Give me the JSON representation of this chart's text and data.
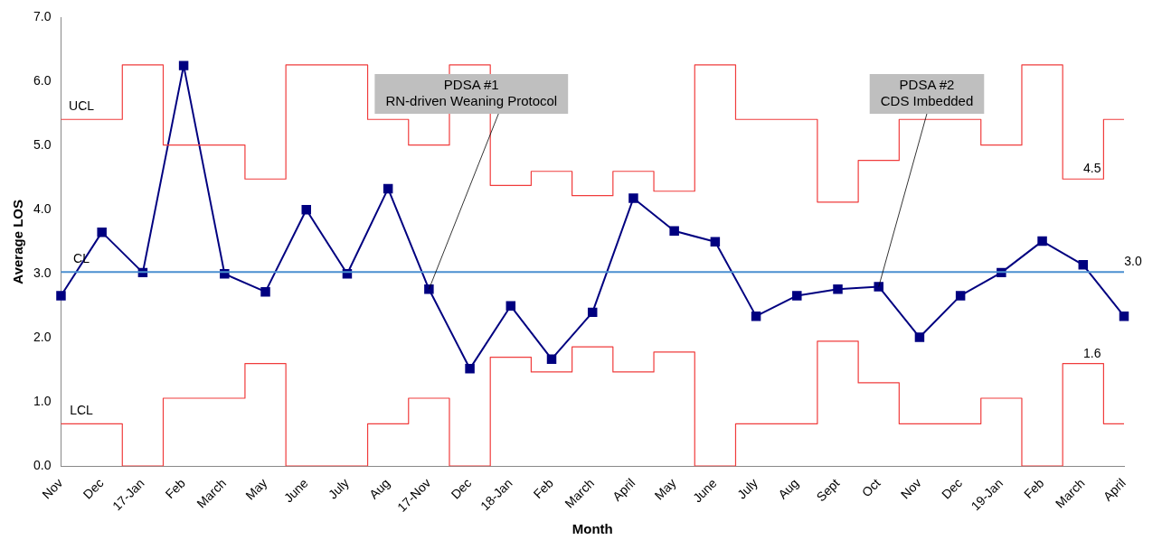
{
  "chart_data": {
    "type": "line",
    "xlabel": "Month",
    "ylabel": "Average LOS",
    "categories": [
      "Nov",
      "Dec",
      "17-Jan",
      "Feb",
      "March",
      "May",
      "June",
      "July",
      "Aug",
      "17-Nov",
      "Dec",
      "18-Jan",
      "Feb",
      "March",
      "April",
      "May",
      "June",
      "July",
      "Aug",
      "Sept",
      "Oct",
      "Nov",
      "Dec",
      "19-Jan",
      "Feb",
      "March",
      "April"
    ],
    "series": [
      {
        "name": "UCL",
        "type": "step",
        "color": "#f03c3c",
        "marker": "none",
        "values": [
          5.41,
          5.41,
          6.26,
          5.01,
          5.01,
          4.48,
          6.26,
          6.26,
          5.41,
          5.01,
          6.26,
          4.38,
          4.6,
          4.22,
          4.6,
          4.29,
          6.26,
          5.41,
          5.41,
          4.12,
          4.77,
          5.41,
          5.41,
          5.01,
          6.26,
          4.48,
          5.41
        ],
        "value_labels": [
          null,
          null,
          null,
          null,
          null,
          null,
          null,
          null,
          null,
          null,
          null,
          null,
          null,
          null,
          null,
          null,
          null,
          null,
          null,
          null,
          null,
          null,
          null,
          null,
          null,
          "4.5",
          null
        ]
      },
      {
        "name": "LCL",
        "type": "step",
        "color": "#f03c3c",
        "marker": "none",
        "values": [
          0.66,
          0.66,
          0,
          1.06,
          1.06,
          1.6,
          0,
          0,
          0.66,
          1.06,
          0,
          1.7,
          1.47,
          1.86,
          1.47,
          1.78,
          0,
          0.66,
          0.66,
          1.95,
          1.3,
          0.66,
          0.66,
          1.06,
          0,
          1.6,
          0.66
        ],
        "value_labels": [
          null,
          null,
          null,
          null,
          null,
          null,
          null,
          null,
          null,
          null,
          null,
          null,
          null,
          null,
          null,
          null,
          null,
          null,
          null,
          null,
          null,
          null,
          null,
          null,
          null,
          "1.6",
          null
        ]
      },
      {
        "name": "CL",
        "type": "line",
        "color": "#4a8fd0",
        "marker": "none",
        "values": [
          3.03,
          3.03,
          3.03,
          3.03,
          3.03,
          3.03,
          3.03,
          3.03,
          3.03,
          3.03,
          3.03,
          3.03,
          3.03,
          3.03,
          3.03,
          3.03,
          3.03,
          3.03,
          3.03,
          3.03,
          3.03,
          3.03,
          3.03,
          3.03,
          3.03,
          3.03,
          3.03
        ],
        "value_labels": [
          null,
          null,
          null,
          null,
          null,
          null,
          null,
          null,
          null,
          null,
          null,
          null,
          null,
          null,
          null,
          null,
          null,
          null,
          null,
          null,
          null,
          null,
          null,
          null,
          null,
          null,
          "3.0"
        ]
      },
      {
        "type": "line",
        "color": "#000080",
        "marker": "square",
        "values": [
          2.66,
          3.65,
          3.02,
          6.25,
          3.0,
          2.72,
          4.0,
          3.0,
          4.33,
          2.76,
          1.52,
          2.5,
          1.67,
          2.4,
          4.18,
          3.67,
          3.5,
          2.34,
          2.66,
          2.76,
          2.8,
          2.01,
          2.66,
          3.02,
          3.51,
          3.14,
          2.34
        ]
      }
    ],
    "ylim": [
      0,
      7
    ],
    "yticks": [
      {
        "value": 0,
        "label": "0.0"
      },
      {
        "value": 1,
        "label": "1.0"
      },
      {
        "value": 2,
        "label": "2.0"
      },
      {
        "value": 3,
        "label": "3.0"
      },
      {
        "value": 4,
        "label": "4.0"
      },
      {
        "value": 5,
        "label": "5.0"
      },
      {
        "value": 6,
        "label": "6.0"
      },
      {
        "value": 7,
        "label": "7.0"
      }
    ],
    "grid": false,
    "legend": false,
    "annotations": [
      {
        "text": "PDSA #1\nRN-driven Weaning Protocol",
        "x": "17-Nov",
        "y": 2.76
      },
      {
        "text": "PDSA #2\nCDS Imbedded",
        "x": "Oct",
        "y": 2.8
      }
    ]
  }
}
